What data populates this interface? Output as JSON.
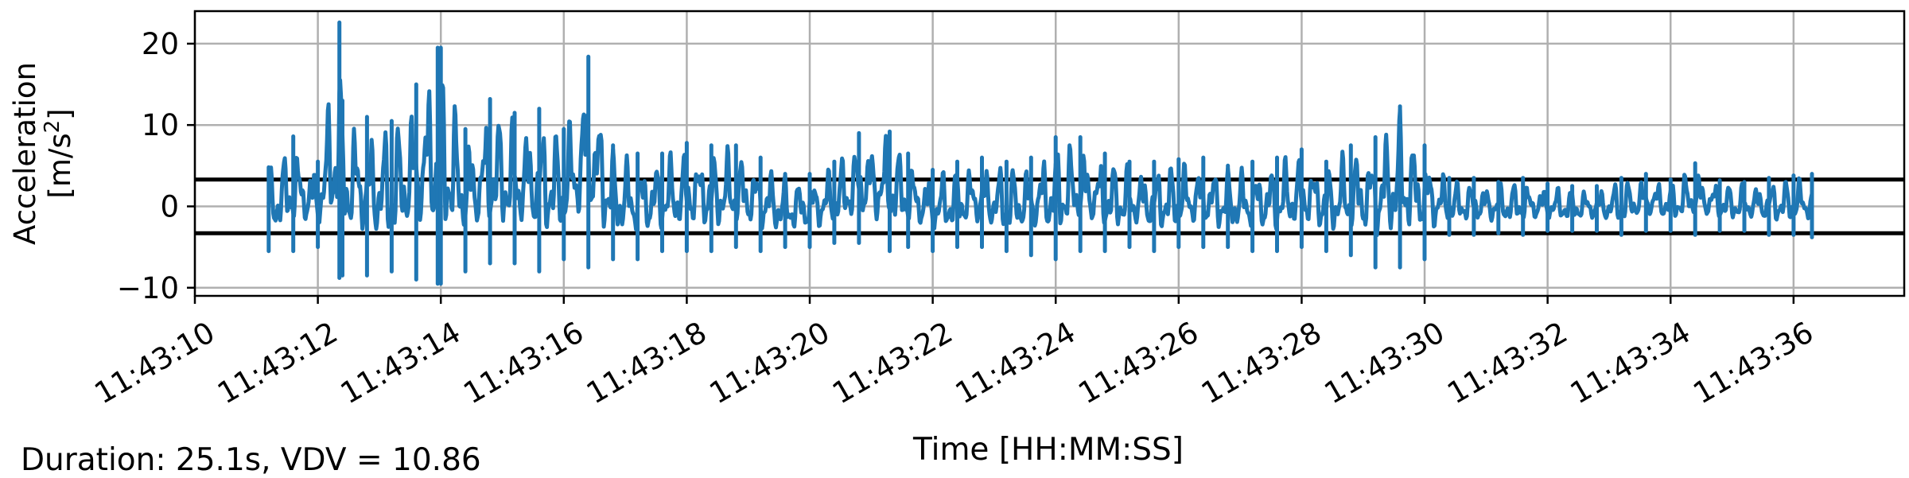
{
  "chart_data": {
    "type": "line",
    "title": "",
    "xlabel": "Time [HH:MM:SS]",
    "ylabel_line1": "Acceleration",
    "ylabel_line2_base": "[m/s",
    "ylabel_line2_sup": "2",
    "ylabel_line2_end": "]",
    "xlim": [
      "11:43:10",
      "11:43:37.8"
    ],
    "ylim": [
      -11,
      24
    ],
    "x_ticks": [
      "11:43:10",
      "11:43:12",
      "11:43:14",
      "11:43:16",
      "11:43:18",
      "11:43:20",
      "11:43:22",
      "11:43:24",
      "11:43:26",
      "11:43:28",
      "11:43:30",
      "11:43:32",
      "11:43:34",
      "11:43:36"
    ],
    "y_ticks": [
      {
        "value": -10,
        "label": "−10"
      },
      {
        "value": 0,
        "label": "0"
      },
      {
        "value": 10,
        "label": "10"
      },
      {
        "value": 20,
        "label": "20"
      }
    ],
    "grid": true,
    "threshold_lines": [
      3.3,
      -3.3
    ],
    "series": [
      {
        "color": "#1f77b4",
        "x": [
          "11:43:11.2",
          "11:43:11.6",
          "11:43:12.0",
          "11:43:12.35",
          "11:43:12.4",
          "11:43:12.8",
          "11:43:13.2",
          "11:43:13.6",
          "11:43:13.95",
          "11:43:14.0",
          "11:43:14.4",
          "11:43:14.8",
          "11:43:15.2",
          "11:43:15.6",
          "11:43:16.0",
          "11:43:16.4",
          "11:43:16.8",
          "11:43:17.2",
          "11:43:17.6",
          "11:43:18.0",
          "11:43:18.4",
          "11:43:18.8",
          "11:43:19.2",
          "11:43:19.6",
          "11:43:20.0",
          "11:43:20.4",
          "11:43:20.8",
          "11:43:21.3",
          "11:43:21.6",
          "11:43:22.0",
          "11:43:22.4",
          "11:43:22.8",
          "11:43:23.2",
          "11:43:23.6",
          "11:43:24.0",
          "11:43:24.4",
          "11:43:24.8",
          "11:43:25.2",
          "11:43:25.6",
          "11:43:26.0",
          "11:43:26.4",
          "11:43:26.8",
          "11:43:27.2",
          "11:43:27.6",
          "11:43:28.0",
          "11:43:28.4",
          "11:43:28.8",
          "11:43:29.2",
          "11:43:29.6",
          "11:43:30.0",
          "11:43:30.4",
          "11:43:30.8",
          "11:43:31.2",
          "11:43:31.6",
          "11:43:32.0",
          "11:43:32.4",
          "11:43:32.8",
          "11:43:33.2",
          "11:43:33.6",
          "11:43:34.0",
          "11:43:34.4",
          "11:43:34.8",
          "11:43:35.2",
          "11:43:35.6",
          "11:43:36.0",
          "11:43:36.3"
        ],
        "max": [
          4.8,
          8.6,
          5.5,
          22.6,
          13.0,
          11.0,
          10.5,
          15.0,
          19.5,
          19.5,
          9.5,
          13.2,
          11.5,
          12.0,
          9.5,
          18.4,
          7.5,
          6.5,
          6.5,
          7.8,
          7.5,
          7.5,
          6.0,
          4.0,
          4.0,
          5.5,
          9.0,
          9.2,
          6.5,
          4.5,
          5.5,
          6.0,
          5.5,
          6.0,
          8.5,
          8.5,
          6.5,
          5.5,
          5.5,
          5.8,
          6.0,
          5.0,
          5.5,
          6.0,
          7.0,
          5.5,
          7.5,
          8.5,
          12.3,
          7.5,
          3.5,
          3.5,
          3.0,
          3.5,
          2.8,
          2.5,
          2.5,
          3.5,
          4.0,
          3.3,
          5.3,
          3.2,
          3.0,
          3.5,
          3.8,
          4.0
        ],
        "min": [
          -5.5,
          -5.5,
          -5.0,
          -8.8,
          -8.5,
          -8.5,
          -8.0,
          -9.0,
          -9.5,
          -9.5,
          -8.0,
          -7.0,
          -7.0,
          -8.0,
          -6.5,
          -7.5,
          -6.5,
          -6.5,
          -5.5,
          -5.5,
          -5.5,
          -5.0,
          -5.5,
          -5.0,
          -5.0,
          -4.5,
          -4.5,
          -5.5,
          -5.0,
          -5.5,
          -5.0,
          -5.0,
          -5.5,
          -6.0,
          -6.5,
          -5.5,
          -5.5,
          -5.0,
          -5.5,
          -5.0,
          -5.0,
          -5.0,
          -5.5,
          -5.5,
          -5.0,
          -5.5,
          -6.0,
          -7.5,
          -7.5,
          -6.5,
          -3.5,
          -3.5,
          -3.3,
          -3.5,
          -3.0,
          -3.0,
          -3.0,
          -3.5,
          -3.0,
          -3.0,
          -3.5,
          -3.0,
          -3.0,
          -3.5,
          -3.5,
          -3.8
        ]
      }
    ]
  },
  "footnote": "Duration: 25.1s, VDV = 10.86",
  "colors": {
    "series": "#1f77b4",
    "threshold": "#000000",
    "grid": "#b0b0b0",
    "axes": "#000000"
  }
}
